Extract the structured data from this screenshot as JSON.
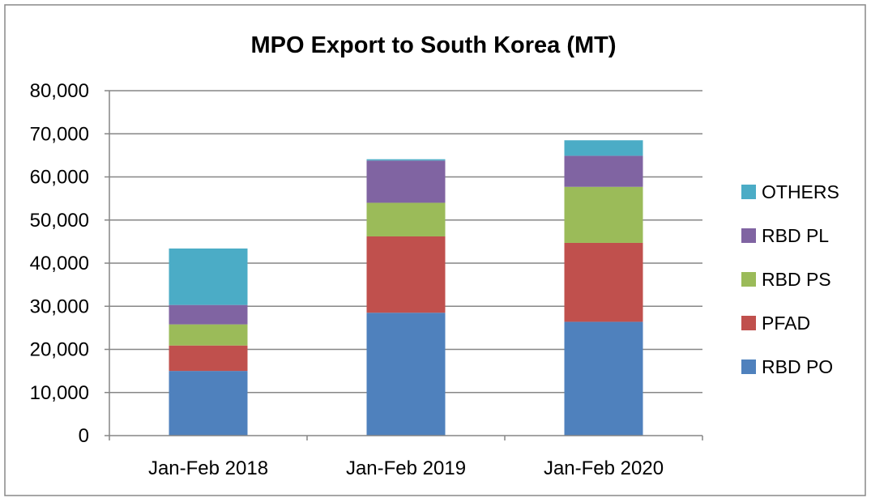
{
  "chart_data": {
    "type": "bar",
    "stacked": true,
    "title": "MPO Export to South Korea (MT)",
    "xlabel": "",
    "ylabel": "",
    "ylim": [
      0,
      80000
    ],
    "yticks": [
      0,
      10000,
      20000,
      30000,
      40000,
      50000,
      60000,
      70000,
      80000
    ],
    "ytick_labels": [
      "0",
      "10,000",
      "20,000",
      "30,000",
      "40,000",
      "50,000",
      "60,000",
      "70,000",
      "80,000"
    ],
    "grid": true,
    "legend_position": "right",
    "categories": [
      "Jan-Feb 2018",
      "Jan-Feb 2019",
      "Jan-Feb 2020"
    ],
    "series": [
      {
        "name": "RBD PO",
        "color": "#4f81bd",
        "values": [
          15000,
          28500,
          26400
        ]
      },
      {
        "name": "PFAD",
        "color": "#c0504d",
        "values": [
          5900,
          17700,
          18300
        ]
      },
      {
        "name": "RBD PS",
        "color": "#9bbb59",
        "values": [
          4900,
          7800,
          13000
        ]
      },
      {
        "name": "RBD PL",
        "color": "#8064a2",
        "values": [
          4500,
          9800,
          7200
        ]
      },
      {
        "name": "OTHERS",
        "color": "#4bacc6",
        "values": [
          13100,
          300,
          3600
        ]
      }
    ]
  }
}
